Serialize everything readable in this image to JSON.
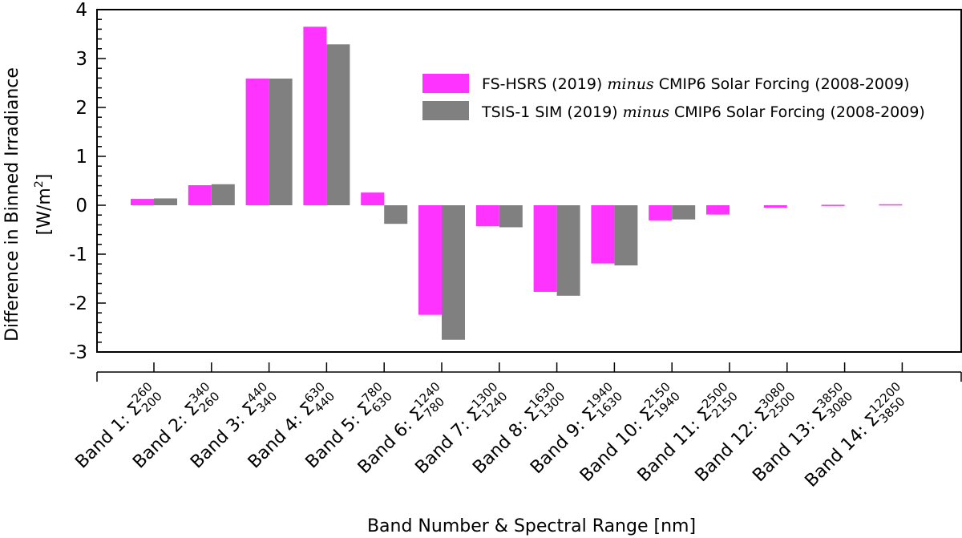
{
  "chart_data": {
    "type": "bar",
    "ylabel_line1": "Difference in Binned Irradiance",
    "ylabel_line2": "[W/m",
    "ylabel_sup": "2",
    "ylabel_close": "]",
    "xlabel": "Band Number & Spectral Range [nm]",
    "ylim": [
      -3,
      4
    ],
    "yticks": [
      "4",
      "3",
      "2",
      "1",
      "0",
      "-1",
      "-2",
      "-3"
    ],
    "ytick_values": [
      4,
      3,
      2,
      1,
      0,
      -1,
      -2,
      -3
    ],
    "grid": false,
    "legend_position": "top-right",
    "categories": [
      {
        "label": "Band 1: Σ",
        "sup": "260",
        "sub": "200"
      },
      {
        "label": "Band 2: Σ",
        "sup": "340",
        "sub": "260"
      },
      {
        "label": "Band 3: Σ",
        "sup": "440",
        "sub": "340"
      },
      {
        "label": "Band 4: Σ",
        "sup": "630",
        "sub": "440"
      },
      {
        "label": "Band 5: Σ",
        "sup": "780",
        "sub": "630"
      },
      {
        "label": "Band 6: Σ",
        "sup": "1240",
        "sub": "780"
      },
      {
        "label": "Band 7: Σ",
        "sup": "1300",
        "sub": "1240"
      },
      {
        "label": "Band 8: Σ",
        "sup": "1630",
        "sub": "1300"
      },
      {
        "label": "Band 9: Σ",
        "sup": "1940",
        "sub": "1630"
      },
      {
        "label": "Band 10: Σ",
        "sup": "2150",
        "sub": "1940"
      },
      {
        "label": "Band 11: Σ",
        "sup": "2500",
        "sub": "2150"
      },
      {
        "label": "Band 12: Σ",
        "sup": "3080",
        "sub": "2500"
      },
      {
        "label": "Band 13: Σ",
        "sup": "3850",
        "sub": "3080"
      },
      {
        "label": "Band 14: Σ",
        "sup": "12200",
        "sub": "3850"
      }
    ],
    "series": [
      {
        "name_prefix": "FS-HSRS (2019) ",
        "name_italic": "minus",
        "name_suffix": " CMIP6 Solar Forcing (2008-2009)",
        "color": "#ff33ff",
        "values": [
          0.13,
          0.41,
          2.59,
          3.65,
          0.26,
          -2.24,
          -0.43,
          -1.77,
          -1.19,
          -0.31,
          -0.19,
          -0.05,
          0.01,
          0.02
        ]
      },
      {
        "name_prefix": "TSIS-1 SIM (2019) ",
        "name_italic": "minus",
        "name_suffix": " CMIP6 Solar Forcing (2008-2009)",
        "color": "#808080",
        "values": [
          0.14,
          0.43,
          2.59,
          3.29,
          -0.38,
          -2.75,
          -0.45,
          -1.85,
          -1.23,
          -0.29,
          0,
          0,
          0,
          0
        ]
      }
    ]
  }
}
